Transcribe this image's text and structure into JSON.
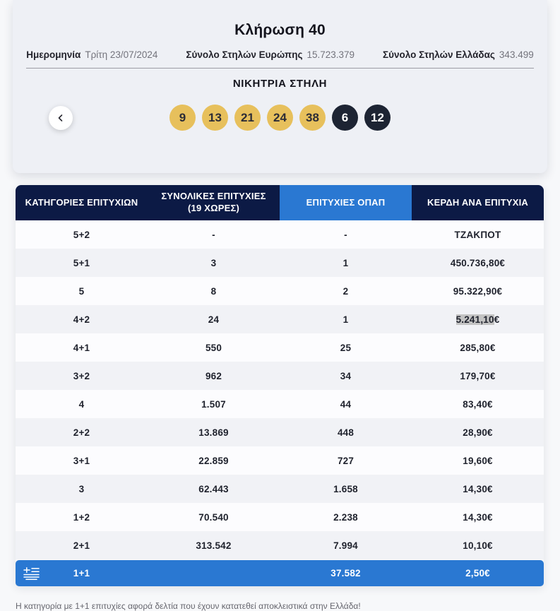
{
  "card": {
    "title": "Κλήρωση 40",
    "meta": [
      {
        "label": "Ημερομηνία",
        "value": "Τρίτη 23/07/2024"
      },
      {
        "label": "Σύνολο Στηλών Ευρώπης",
        "value": "15.723.379"
      },
      {
        "label": "Σύνολο Στηλών Ελλάδας",
        "value": "343.499"
      }
    ],
    "winning_title": "ΝΙΚΗΤΡΙΑ ΣΤΗΛΗ",
    "main_numbers": [
      "9",
      "13",
      "21",
      "24",
      "38"
    ],
    "bonus_numbers": [
      "6",
      "12"
    ],
    "prev_button_icon": "chevron-left"
  },
  "table": {
    "headers": [
      {
        "text": "ΚΑΤΗΓΟΡΙΕΣ ΕΠΙΤΥΧΙΩΝ",
        "sub": ""
      },
      {
        "text": "ΣΥΝΟΛΙΚΕΣ ΕΠΙΤΥΧΙΕΣ",
        "sub": "(19 ΧΩΡΕΣ)"
      },
      {
        "text": "ΕΠΙΤΥΧΙΕΣ ΟΠΑΠ",
        "sub": ""
      },
      {
        "text": "ΚΕΡΔΗ ΑΝΑ ΕΠΙΤΥΧΙΑ",
        "sub": ""
      }
    ],
    "rows": [
      {
        "category": "5+2",
        "total": "-",
        "opap": "-",
        "prize": "ΤΖΑΚΠΟΤ"
      },
      {
        "category": "5+1",
        "total": "3",
        "opap": "1",
        "prize": "450.736,80€"
      },
      {
        "category": "5",
        "total": "8",
        "opap": "2",
        "prize": "95.322,90€"
      },
      {
        "category": "4+2",
        "total": "24",
        "opap": "1",
        "prize_main": "5.241,10",
        "prize_suffix": "€"
      },
      {
        "category": "4+1",
        "total": "550",
        "opap": "25",
        "prize": "285,80€"
      },
      {
        "category": "3+2",
        "total": "962",
        "opap": "34",
        "prize": "179,70€"
      },
      {
        "category": "4",
        "total": "1.507",
        "opap": "44",
        "prize": "83,40€"
      },
      {
        "category": "2+2",
        "total": "13.869",
        "opap": "448",
        "prize": "28,90€"
      },
      {
        "category": "3+1",
        "total": "22.859",
        "opap": "727",
        "prize": "19,60€"
      },
      {
        "category": "3",
        "total": "62.443",
        "opap": "1.658",
        "prize": "14,30€"
      },
      {
        "category": "1+2",
        "total": "70.540",
        "opap": "2.238",
        "prize": "14,30€"
      },
      {
        "category": "2+1",
        "total": "313.542",
        "opap": "7.994",
        "prize": "10,10€"
      }
    ],
    "greece_row": {
      "category": "1+1",
      "total": "",
      "opap": "37.582",
      "prize": "2,50€",
      "flag_icon": "greek-flag"
    },
    "footnote": "Η κατηγορία με 1+1 επιτυχίες αφορά δελτία που έχουν κατατεθεί αποκλειστικά στην Ελλάδα!"
  },
  "colors": {
    "header_navy": "#0c1a45",
    "accent_blue": "#2a78d2",
    "ball_gold": "#e7c05c",
    "ball_dark": "#1d2433",
    "selection_gray": "#c3c3c3",
    "card_bg": "#eef0f5"
  }
}
